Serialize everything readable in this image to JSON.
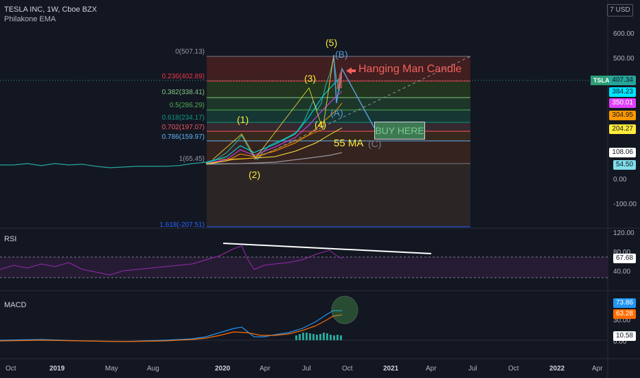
{
  "header": {
    "symbol_line": "TESLA INC, 1W, Cboe BZX",
    "indicator": "Philakone EMA"
  },
  "currency": "7 USD",
  "ticker_tag": "TSLA",
  "price_axis": [
    "600.00",
    "500.00",
    "0.00",
    "-100.00"
  ],
  "price_badges": [
    {
      "value": "407.34",
      "color": "#26a69a",
      "text_color": "#131722"
    },
    {
      "value": "384.23",
      "color": "#00e5ff",
      "text_color": "#131722"
    },
    {
      "value": "350.01",
      "color": "#e040fb",
      "text_color": "#ffffff"
    },
    {
      "value": "304.95",
      "color": "#ff9800",
      "text_color": "#131722"
    },
    {
      "value": "204.27",
      "color": "#ffeb3b",
      "text_color": "#131722"
    },
    {
      "value": "108.06",
      "color": "#ffffff",
      "text_color": "#131722"
    },
    {
      "value": "54.50",
      "color": "#80deea",
      "text_color": "#131722"
    }
  ],
  "fib_levels": [
    {
      "label": "0(507.13)",
      "color": "#9598a1"
    },
    {
      "label": "0.236(402.89)",
      "color": "#f23645"
    },
    {
      "label": "0.382(338.41)",
      "color": "#81c784"
    },
    {
      "label": "0.5(286.29)",
      "color": "#4caf50"
    },
    {
      "label": "0.618(234.17)",
      "color": "#089981"
    },
    {
      "label": "0.702(197.07)",
      "color": "#f7525f"
    },
    {
      "label": "0.786(159.97)",
      "color": "#64b5f6"
    },
    {
      "label": "1(65.45)",
      "color": "#9598a1"
    },
    {
      "label": "1.618(-207.51)",
      "color": "#2962ff"
    }
  ],
  "wave_labels": [
    {
      "text": "(1)",
      "color": "#ffeb3b"
    },
    {
      "text": "(2)",
      "color": "#ffeb3b"
    },
    {
      "text": "(3)",
      "color": "#ffeb3b"
    },
    {
      "text": "(4)",
      "color": "#ffeb3b"
    },
    {
      "text": "(5)",
      "color": "#ffeb3b"
    },
    {
      "text": "(A)",
      "color": "#5b9bd5"
    },
    {
      "text": "(B)",
      "color": "#5b9bd5"
    },
    {
      "text": "(C)",
      "color": "#787b86"
    }
  ],
  "annotations": {
    "hanging_man": "Hanging Man Candle",
    "buy_here": "BUY HERE",
    "ma_label": "55 MA"
  },
  "rsi": {
    "title": "RSI",
    "axis": [
      "120.00",
      "80.00",
      "40.00"
    ],
    "badge": "67.68"
  },
  "macd": {
    "title": "MACD",
    "axis": [
      "30.00",
      "0.00"
    ],
    "badges": [
      {
        "value": "73.86",
        "color": "#2196f3",
        "text_color": "#ffffff"
      },
      {
        "value": "63.28",
        "color": "#ff6d00",
        "text_color": "#ffffff"
      },
      {
        "value": "10.58",
        "color": "#ffffff",
        "text_color": "#131722"
      }
    ]
  },
  "time_axis": [
    "Oct",
    "2019",
    "May",
    "Aug",
    "2020",
    "Apr",
    "Jul",
    "Oct",
    "2021",
    "Apr",
    "Jul",
    "Oct",
    "2022",
    "Apr"
  ]
}
